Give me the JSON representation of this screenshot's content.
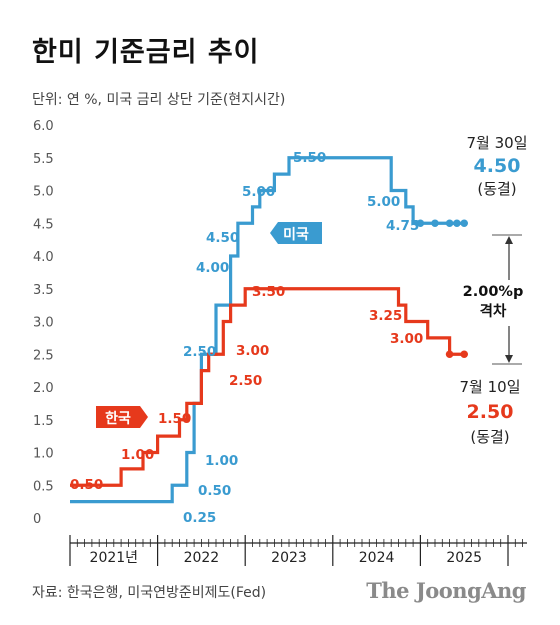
{
  "header": {
    "title": "한미 기준금리 추이",
    "unit": "단위: 연 %, 미국 금리 상단 기준(현지시간)"
  },
  "footer": {
    "source": "자료: 한국은행, 미국연방준비제도(Fed)",
    "brand": "The JoongAng"
  },
  "side_us": {
    "date": "7월 30일",
    "value": "4.50",
    "note": "(동결)"
  },
  "side_kr": {
    "date": "7월 10일",
    "value": "2.50",
    "note": "(동결)"
  },
  "gap": {
    "line1": "2.00%p",
    "line2": "격차"
  },
  "chart_data": {
    "type": "line",
    "step": true,
    "ylim": [
      0,
      6.0
    ],
    "yticks": [
      "0",
      "0.5",
      "1.0",
      "1.5",
      "2.0",
      "2.5",
      "3.0",
      "3.5",
      "4.0",
      "4.5",
      "5.0",
      "5.5",
      "6.0"
    ],
    "years": [
      "2021년",
      "2022",
      "2023",
      "2024",
      "2025"
    ],
    "grid": false,
    "series": [
      {
        "name": "미국",
        "color": "#3a9bd0",
        "points": [
          [
            "2021-01",
            0.25
          ],
          [
            "2022-03",
            0.5
          ],
          [
            "2022-05",
            1.0
          ],
          [
            "2022-06",
            1.75
          ],
          [
            "2022-07",
            2.5
          ],
          [
            "2022-09",
            3.25
          ],
          [
            "2022-11",
            4.0
          ],
          [
            "2022-12",
            4.5
          ],
          [
            "2023-02",
            4.75
          ],
          [
            "2023-03",
            5.0
          ],
          [
            "2023-05",
            5.25
          ],
          [
            "2023-07",
            5.5
          ],
          [
            "2024-09",
            5.0
          ],
          [
            "2024-11",
            4.75
          ],
          [
            "2024-12",
            4.5
          ],
          [
            "2025-07",
            4.5
          ]
        ],
        "dots": [
          "2025-01",
          "2025-03",
          "2025-05",
          "2025-06",
          "2025-07"
        ],
        "labels": [
          "0.25",
          "0.50",
          "1.00",
          "2.50",
          "4.00",
          "4.50",
          "5.00",
          "5.50",
          "5.00",
          "4.75"
        ]
      },
      {
        "name": "한국",
        "color": "#e6391c",
        "points": [
          [
            "2021-01",
            0.5
          ],
          [
            "2021-08",
            0.75
          ],
          [
            "2021-11",
            1.0
          ],
          [
            "2022-01",
            1.25
          ],
          [
            "2022-04",
            1.5
          ],
          [
            "2022-05",
            1.75
          ],
          [
            "2022-07",
            2.25
          ],
          [
            "2022-08",
            2.5
          ],
          [
            "2022-10",
            3.0
          ],
          [
            "2022-11",
            3.25
          ],
          [
            "2023-01",
            3.5
          ],
          [
            "2024-10",
            3.25
          ],
          [
            "2024-11",
            3.0
          ],
          [
            "2025-02",
            2.75
          ],
          [
            "2025-05",
            2.5
          ],
          [
            "2025-07",
            2.5
          ]
        ],
        "dots": [
          "2025-05",
          "2025-07"
        ],
        "labels": [
          "0.50",
          "1.00",
          "1.50",
          "2.50",
          "3.00",
          "3.50",
          "3.25",
          "3.00"
        ]
      }
    ],
    "gap_value": 2.0
  }
}
